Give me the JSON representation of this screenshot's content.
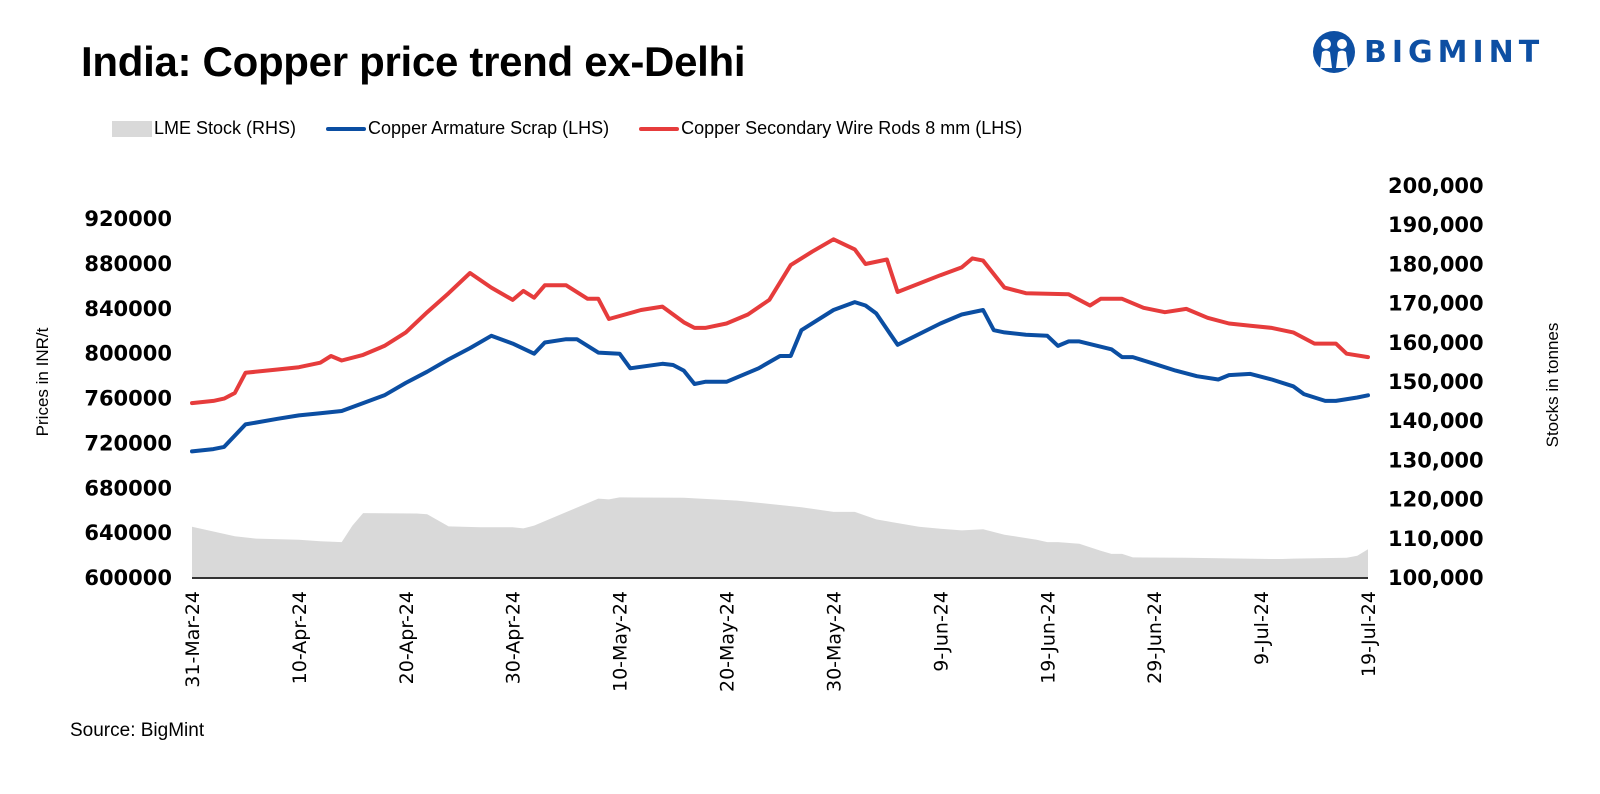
{
  "header": {
    "title": "India: Copper price trend ex-Delhi",
    "logo_text": "BIGMINT",
    "logo_icon": "people-group-icon",
    "brand_color": "#0d4fa3"
  },
  "footer": {
    "source": "Source: BigMint"
  },
  "colors": {
    "lme_stock": "#d9d9d9",
    "armature": "#0b4ea2",
    "wire_rods": "#e63c3c",
    "axis": "#333333"
  },
  "chart_data": {
    "type": "line",
    "title": "India: Copper price trend ex-Delhi",
    "legend": [
      {
        "name": "LME Stock (RHS)",
        "kind": "area"
      },
      {
        "name": "Copper Armature Scrap (LHS)",
        "kind": "line"
      },
      {
        "name": "Copper Secondary Wire Rods 8 mm (LHS)",
        "kind": "line"
      }
    ],
    "legend_position": "top-left",
    "ylabel_left": "Prices in INR/t",
    "ylabel_right": "Stocks in tonnes",
    "ylim_left": [
      600000,
      920000
    ],
    "ylim_right": [
      100000,
      200000
    ],
    "yticks_left": [
      "920000",
      "880000",
      "840000",
      "800000",
      "760000",
      "720000",
      "680000",
      "640000",
      "600000"
    ],
    "yticks_right": [
      "200,000",
      "190,000",
      "180,000",
      "170,000",
      "160,000",
      "150,000",
      "140,000",
      "130,000",
      "120,000",
      "110,000",
      "100,000"
    ],
    "xlim_days": [
      0,
      110
    ],
    "x_start_date": "31-Mar-24",
    "xticks": [
      {
        "label": "31-Mar-24",
        "day": 0
      },
      {
        "label": "10-Apr-24",
        "day": 10
      },
      {
        "label": "20-Apr-24",
        "day": 20
      },
      {
        "label": "30-Apr-24",
        "day": 30
      },
      {
        "label": "10-May-24",
        "day": 40
      },
      {
        "label": "20-May-24",
        "day": 50
      },
      {
        "label": "30-May-24",
        "day": 60
      },
      {
        "label": "9-Jun-24",
        "day": 70
      },
      {
        "label": "19-Jun-24",
        "day": 80
      },
      {
        "label": "29-Jun-24",
        "day": 90
      },
      {
        "label": "9-Jul-24",
        "day": 100
      },
      {
        "label": "19-Jul-24",
        "day": 110
      }
    ],
    "grid": false,
    "series": [
      {
        "name": "LME Stock (RHS)",
        "axis": "right",
        "type": "area",
        "points": [
          [
            0,
            112800
          ],
          [
            2,
            111600
          ],
          [
            4,
            110400
          ],
          [
            6,
            109800
          ],
          [
            10,
            109500
          ],
          [
            12,
            109100
          ],
          [
            14,
            108900
          ],
          [
            15,
            113100
          ],
          [
            16,
            116300
          ],
          [
            21,
            116200
          ],
          [
            22,
            116000
          ],
          [
            24,
            112900
          ],
          [
            27,
            112700
          ],
          [
            30,
            112700
          ],
          [
            31,
            112400
          ],
          [
            32,
            113100
          ],
          [
            38,
            120000
          ],
          [
            39,
            119800
          ],
          [
            40,
            120300
          ],
          [
            46,
            120200
          ],
          [
            51,
            119500
          ],
          [
            57,
            117800
          ],
          [
            60,
            116600
          ],
          [
            62,
            116600
          ],
          [
            64,
            114700
          ],
          [
            68,
            112800
          ],
          [
            70,
            112300
          ],
          [
            72,
            111900
          ],
          [
            74,
            112200
          ],
          [
            76,
            110800
          ],
          [
            79,
            109500
          ],
          [
            80,
            108900
          ],
          [
            81,
            108900
          ],
          [
            83,
            108500
          ],
          [
            85,
            106700
          ],
          [
            86,
            105900
          ],
          [
            87,
            105900
          ],
          [
            88,
            105000
          ],
          [
            93,
            104900
          ],
          [
            101,
            104600
          ],
          [
            102,
            104600
          ],
          [
            103,
            104700
          ],
          [
            108,
            104900
          ],
          [
            109,
            105400
          ],
          [
            110,
            107100
          ]
        ]
      },
      {
        "name": "Copper Armature Scrap (LHS)",
        "axis": "left",
        "type": "line",
        "points": [
          [
            0,
            712000
          ],
          [
            2,
            714000
          ],
          [
            3,
            716000
          ],
          [
            4,
            726000
          ],
          [
            5,
            736000
          ],
          [
            8,
            741000
          ],
          [
            10,
            744000
          ],
          [
            12,
            746000
          ],
          [
            13,
            747000
          ],
          [
            14,
            748000
          ],
          [
            16,
            755000
          ],
          [
            18,
            762000
          ],
          [
            20,
            773000
          ],
          [
            22,
            783000
          ],
          [
            24,
            794000
          ],
          [
            26,
            804000
          ],
          [
            28,
            815000
          ],
          [
            30,
            808000
          ],
          [
            32,
            799000
          ],
          [
            33,
            809000
          ],
          [
            35,
            812000
          ],
          [
            36,
            812000
          ],
          [
            38,
            800000
          ],
          [
            40,
            799000
          ],
          [
            41,
            786000
          ],
          [
            44,
            790000
          ],
          [
            45,
            789000
          ],
          [
            46,
            784000
          ],
          [
            47,
            772000
          ],
          [
            48,
            774000
          ],
          [
            50,
            774000
          ],
          [
            53,
            786000
          ],
          [
            55,
            797000
          ],
          [
            56,
            797000
          ],
          [
            57,
            820000
          ],
          [
            60,
            838000
          ],
          [
            62,
            845000
          ],
          [
            63,
            842000
          ],
          [
            64,
            835000
          ],
          [
            66,
            807000
          ],
          [
            70,
            826000
          ],
          [
            72,
            834000
          ],
          [
            74,
            838000
          ],
          [
            75,
            820000
          ],
          [
            76,
            818000
          ],
          [
            78,
            816000
          ],
          [
            80,
            815000
          ],
          [
            81,
            806000
          ],
          [
            82,
            810000
          ],
          [
            83,
            810000
          ],
          [
            86,
            803000
          ],
          [
            87,
            796000
          ],
          [
            88,
            796000
          ],
          [
            90,
            790000
          ],
          [
            92,
            784000
          ],
          [
            94,
            779000
          ],
          [
            96,
            776000
          ],
          [
            97,
            780000
          ],
          [
            99,
            781000
          ],
          [
            101,
            776000
          ],
          [
            103,
            770000
          ],
          [
            104,
            763000
          ],
          [
            106,
            757000
          ],
          [
            107,
            757000
          ],
          [
            109,
            760000
          ],
          [
            110,
            762000
          ]
        ]
      },
      {
        "name": "Copper Secondary Wire Rods 8 mm (LHS)",
        "axis": "left",
        "type": "line",
        "points": [
          [
            0,
            755000
          ],
          [
            2,
            757000
          ],
          [
            3,
            759000
          ],
          [
            4,
            764000
          ],
          [
            5,
            782000
          ],
          [
            8,
            785000
          ],
          [
            10,
            787000
          ],
          [
            12,
            791000
          ],
          [
            13,
            797000
          ],
          [
            14,
            793000
          ],
          [
            16,
            798000
          ],
          [
            18,
            806000
          ],
          [
            20,
            818000
          ],
          [
            22,
            836000
          ],
          [
            24,
            853000
          ],
          [
            26,
            871000
          ],
          [
            28,
            858000
          ],
          [
            30,
            847000
          ],
          [
            31,
            855000
          ],
          [
            32,
            849000
          ],
          [
            33,
            860000
          ],
          [
            35,
            860000
          ],
          [
            37,
            848000
          ],
          [
            38,
            848000
          ],
          [
            39,
            830000
          ],
          [
            42,
            838000
          ],
          [
            44,
            841000
          ],
          [
            46,
            827000
          ],
          [
            47,
            822000
          ],
          [
            48,
            822000
          ],
          [
            50,
            826000
          ],
          [
            52,
            834000
          ],
          [
            54,
            847000
          ],
          [
            56,
            878000
          ],
          [
            58,
            890000
          ],
          [
            60,
            901000
          ],
          [
            62,
            892000
          ],
          [
            63,
            879000
          ],
          [
            65,
            883000
          ],
          [
            66,
            854000
          ],
          [
            70,
            869000
          ],
          [
            72,
            876000
          ],
          [
            73,
            884000
          ],
          [
            74,
            882000
          ],
          [
            76,
            858000
          ],
          [
            78,
            853000
          ],
          [
            82,
            852000
          ],
          [
            84,
            842000
          ],
          [
            85,
            848000
          ],
          [
            87,
            848000
          ],
          [
            89,
            840000
          ],
          [
            91,
            836000
          ],
          [
            93,
            839000
          ],
          [
            95,
            831000
          ],
          [
            97,
            826000
          ],
          [
            99,
            824000
          ],
          [
            101,
            822000
          ],
          [
            103,
            818000
          ],
          [
            105,
            808000
          ],
          [
            107,
            808000
          ],
          [
            108,
            799000
          ],
          [
            110,
            796000
          ]
        ]
      }
    ]
  }
}
